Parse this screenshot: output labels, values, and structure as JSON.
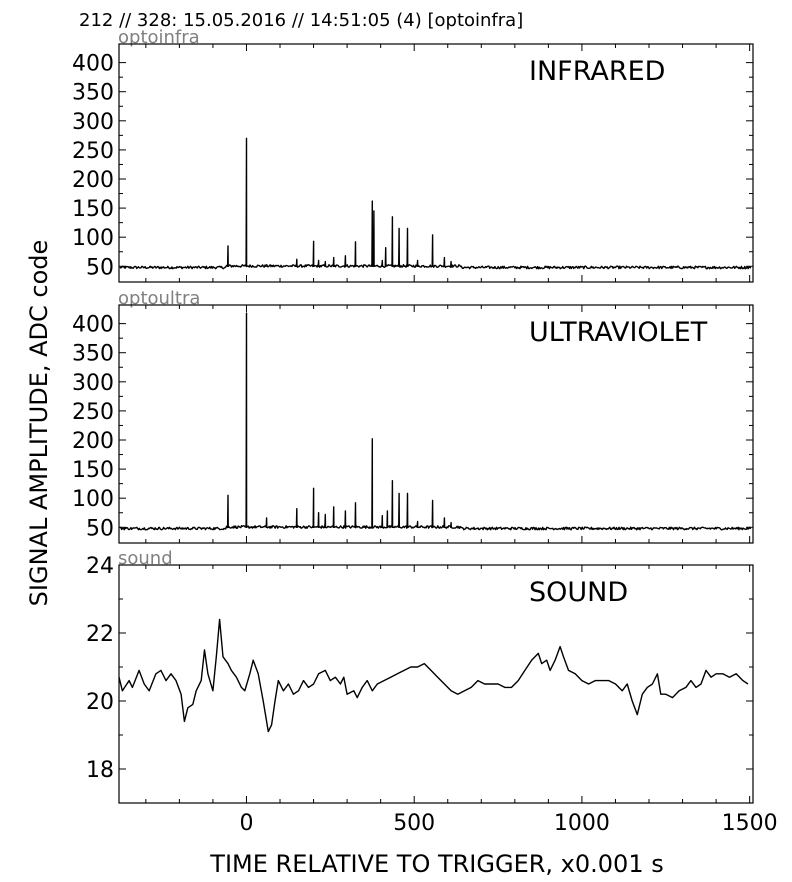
{
  "header": "212 // 328:   15.05.2016 // 14:51:05 (4)  [optoinfra]",
  "ylabel": "SIGNAL AMPLITUDE,  ADC code",
  "xlabel": "TIME RELATIVE TO TRIGGER,   x0.001 s",
  "chart_data": [
    {
      "type": "line",
      "title": "optoinfra",
      "annotation": "INFRARED",
      "xlim": [
        -380,
        1510
      ],
      "ylim": [
        23,
        432
      ],
      "yticks": [
        50,
        100,
        150,
        200,
        250,
        300,
        350,
        400
      ],
      "baseline": 48,
      "peaks": [
        [
          -55,
          85
        ],
        [
          0,
          270
        ],
        [
          150,
          62
        ],
        [
          200,
          93
        ],
        [
          215,
          60
        ],
        [
          235,
          58
        ],
        [
          260,
          65
        ],
        [
          295,
          68
        ],
        [
          325,
          92
        ],
        [
          375,
          162
        ],
        [
          380,
          145
        ],
        [
          405,
          60
        ],
        [
          415,
          82
        ],
        [
          435,
          135
        ],
        [
          455,
          115
        ],
        [
          480,
          115
        ],
        [
          510,
          60
        ],
        [
          555,
          104
        ],
        [
          590,
          65
        ],
        [
          610,
          58
        ]
      ]
    },
    {
      "type": "line",
      "title": "optoultra",
      "annotation": "ULTRAVIOLET",
      "xlim": [
        -380,
        1510
      ],
      "ylim": [
        23,
        432
      ],
      "yticks": [
        50,
        100,
        150,
        200,
        250,
        300,
        350,
        400
      ],
      "baseline": 48,
      "peaks": [
        [
          -55,
          105
        ],
        [
          0,
          418
        ],
        [
          60,
          66
        ],
        [
          150,
          82
        ],
        [
          200,
          117
        ],
        [
          215,
          75
        ],
        [
          235,
          72
        ],
        [
          260,
          85
        ],
        [
          295,
          78
        ],
        [
          325,
          92
        ],
        [
          375,
          202
        ],
        [
          405,
          70
        ],
        [
          420,
          78
        ],
        [
          435,
          130
        ],
        [
          455,
          108
        ],
        [
          480,
          108
        ],
        [
          510,
          60
        ],
        [
          555,
          96
        ],
        [
          590,
          66
        ],
        [
          610,
          58
        ]
      ]
    },
    {
      "type": "line",
      "title": "sound",
      "annotation": "SOUND",
      "xlim": [
        -380,
        1510
      ],
      "ylim": [
        17,
        24
      ],
      "yticks": [
        18,
        20,
        22,
        24
      ],
      "xticks": [
        0,
        500,
        1000,
        1500
      ],
      "points": [
        [
          -380,
          20.7
        ],
        [
          -370,
          20.3
        ],
        [
          -350,
          20.6
        ],
        [
          -340,
          20.4
        ],
        [
          -320,
          20.9
        ],
        [
          -305,
          20.5
        ],
        [
          -290,
          20.3
        ],
        [
          -270,
          20.8
        ],
        [
          -255,
          20.9
        ],
        [
          -240,
          20.6
        ],
        [
          -225,
          20.8
        ],
        [
          -210,
          20.6
        ],
        [
          -195,
          20.2
        ],
        [
          -185,
          19.4
        ],
        [
          -175,
          19.8
        ],
        [
          -160,
          19.9
        ],
        [
          -150,
          20.3
        ],
        [
          -135,
          20.6
        ],
        [
          -125,
          21.5
        ],
        [
          -115,
          20.8
        ],
        [
          -100,
          20.3
        ],
        [
          -90,
          21.3
        ],
        [
          -80,
          22.4
        ],
        [
          -70,
          21.3
        ],
        [
          -55,
          21.1
        ],
        [
          -45,
          20.9
        ],
        [
          -30,
          20.7
        ],
        [
          -15,
          20.4
        ],
        [
          -5,
          20.3
        ],
        [
          10,
          20.8
        ],
        [
          20,
          21.2
        ],
        [
          35,
          20.8
        ],
        [
          50,
          20.0
        ],
        [
          65,
          19.1
        ],
        [
          75,
          19.3
        ],
        [
          85,
          20.0
        ],
        [
          95,
          20.6
        ],
        [
          110,
          20.3
        ],
        [
          125,
          20.5
        ],
        [
          140,
          20.2
        ],
        [
          155,
          20.3
        ],
        [
          170,
          20.6
        ],
        [
          185,
          20.4
        ],
        [
          200,
          20.5
        ],
        [
          215,
          20.8
        ],
        [
          235,
          20.9
        ],
        [
          250,
          20.6
        ],
        [
          265,
          20.7
        ],
        [
          280,
          20.5
        ],
        [
          290,
          20.7
        ],
        [
          300,
          20.2
        ],
        [
          320,
          20.3
        ],
        [
          330,
          20.1
        ],
        [
          345,
          20.4
        ],
        [
          360,
          20.6
        ],
        [
          375,
          20.3
        ],
        [
          390,
          20.5
        ],
        [
          410,
          20.6
        ],
        [
          430,
          20.7
        ],
        [
          450,
          20.8
        ],
        [
          470,
          20.9
        ],
        [
          490,
          21.0
        ],
        [
          510,
          21.0
        ],
        [
          530,
          21.1
        ],
        [
          550,
          20.9
        ],
        [
          570,
          20.7
        ],
        [
          590,
          20.5
        ],
        [
          610,
          20.3
        ],
        [
          630,
          20.2
        ],
        [
          650,
          20.3
        ],
        [
          670,
          20.4
        ],
        [
          690,
          20.6
        ],
        [
          710,
          20.5
        ],
        [
          730,
          20.5
        ],
        [
          750,
          20.5
        ],
        [
          770,
          20.4
        ],
        [
          790,
          20.4
        ],
        [
          810,
          20.6
        ],
        [
          830,
          20.9
        ],
        [
          850,
          21.2
        ],
        [
          870,
          21.4
        ],
        [
          880,
          21.1
        ],
        [
          895,
          21.2
        ],
        [
          905,
          20.9
        ],
        [
          920,
          21.2
        ],
        [
          935,
          21.6
        ],
        [
          945,
          21.3
        ],
        [
          960,
          20.9
        ],
        [
          980,
          20.8
        ],
        [
          1000,
          20.6
        ],
        [
          1020,
          20.5
        ],
        [
          1040,
          20.6
        ],
        [
          1060,
          20.6
        ],
        [
          1080,
          20.6
        ],
        [
          1100,
          20.5
        ],
        [
          1120,
          20.3
        ],
        [
          1135,
          20.5
        ],
        [
          1150,
          20.0
        ],
        [
          1165,
          19.6
        ],
        [
          1180,
          20.2
        ],
        [
          1195,
          20.4
        ],
        [
          1210,
          20.5
        ],
        [
          1225,
          20.8
        ],
        [
          1235,
          20.2
        ],
        [
          1250,
          20.2
        ],
        [
          1270,
          20.1
        ],
        [
          1290,
          20.3
        ],
        [
          1310,
          20.4
        ],
        [
          1325,
          20.6
        ],
        [
          1340,
          20.4
        ],
        [
          1355,
          20.5
        ],
        [
          1370,
          20.9
        ],
        [
          1385,
          20.7
        ],
        [
          1400,
          20.8
        ],
        [
          1420,
          20.8
        ],
        [
          1440,
          20.7
        ],
        [
          1460,
          20.8
        ],
        [
          1480,
          20.6
        ],
        [
          1495,
          20.5
        ]
      ]
    }
  ]
}
